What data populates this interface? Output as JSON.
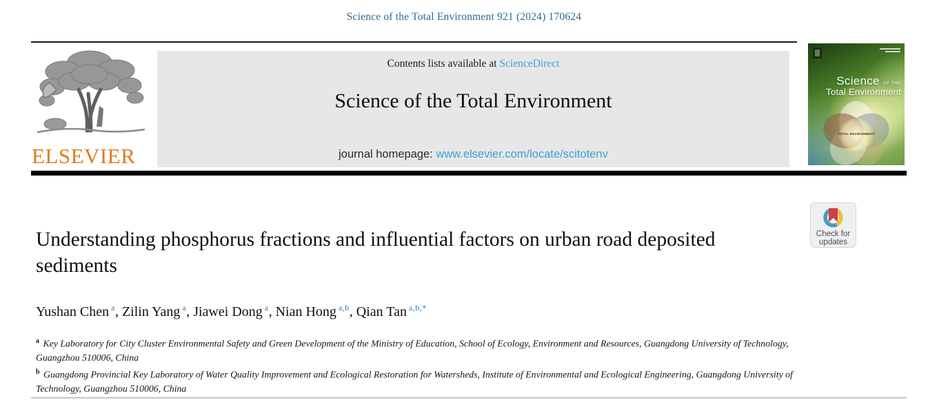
{
  "page": {
    "citation": "Science of the Total Environment 921 (2024) 170624"
  },
  "header": {
    "contents_prefix": "Contents lists available at ",
    "contents_link": "ScienceDirect",
    "journal_title": "Science of the Total Environment",
    "homepage_prefix": "journal homepage: ",
    "homepage_url": "www.elsevier.com/locate/scitotenv",
    "elsevier_logo_text": "ELSEVIER",
    "cover": {
      "title_word1": "Science",
      "title_of_the": "OF THE",
      "title_word2": "Total Environment",
      "center_label": "TOTAL ENVIRONMENT"
    }
  },
  "badge": {
    "line1": "Check for",
    "line2": "updates"
  },
  "article": {
    "title": "Understanding phosphorus fractions and influential factors on urban road deposited sediments",
    "authors": [
      {
        "name": "Yushan Chen",
        "sup": "a"
      },
      {
        "name": "Zilin Yang",
        "sup": "a"
      },
      {
        "name": "Jiawei Dong",
        "sup": "a"
      },
      {
        "name": "Nian Hong",
        "sup": "a,b"
      },
      {
        "name": "Qian Tan",
        "sup": "a,b,*"
      }
    ],
    "affiliations": [
      {
        "marker": "a",
        "text": "Key Laboratory for City Cluster Environmental Safety and Green Development of the Ministry of Education, School of Ecology, Environment and Resources, Guangdong University of Technology, Guangzhou 510006, China"
      },
      {
        "marker": "b",
        "text": "Guangdong Provincial Key Laboratory of Water Quality Improvement and Ecological Restoration for Watersheds, Institute of Environmental and Ecological Engineering, Guangdong University of Technology, Guangzhou 510006, China"
      }
    ]
  },
  "colors": {
    "citation_blue": "#30688f",
    "link_blue": "#3d9fd6",
    "sup_blue": "#2e7cbf",
    "elsevier_orange": "#e07a1f",
    "gray_box": "#e7e7e7",
    "crossmark_red": "#cf3f44",
    "crossmark_blue": "#3f9fc4",
    "crossmark_yellow": "#f2c12e"
  }
}
